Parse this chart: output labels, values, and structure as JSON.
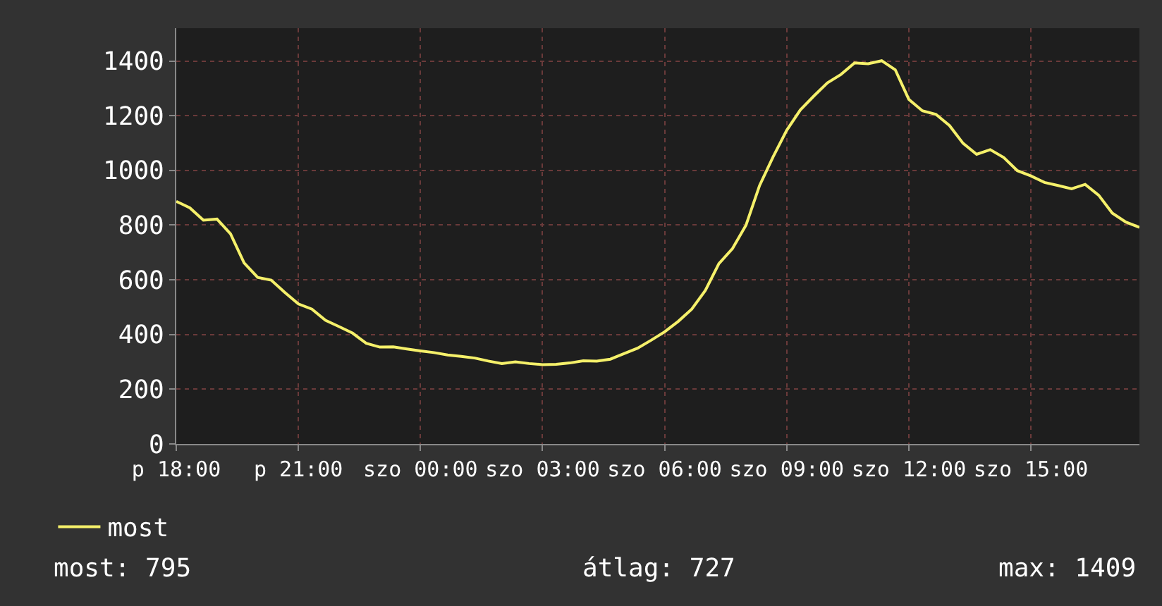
{
  "chart_data": {
    "type": "line",
    "categories": [
      "p 18:00",
      null,
      null,
      null,
      null,
      null,
      null,
      null,
      null,
      "p 21:00",
      null,
      null,
      null,
      null,
      null,
      null,
      null,
      null,
      "szo 00:00",
      null,
      null,
      null,
      null,
      null,
      null,
      null,
      null,
      "szo 03:00",
      null,
      null,
      null,
      null,
      null,
      null,
      null,
      null,
      "szo 06:00",
      null,
      null,
      null,
      null,
      null,
      null,
      null,
      null,
      "szo 09:00",
      null,
      null,
      null,
      null,
      null,
      null,
      null,
      null,
      "szo 12:00",
      null,
      null,
      null,
      null,
      null,
      null,
      null,
      null,
      "szo 15:00",
      null,
      null,
      null,
      null,
      null,
      null,
      null,
      null
    ],
    "series": [
      {
        "name": "most",
        "color": "#f5f06a",
        "values": [
          887,
          863,
          818,
          822,
          768,
          662,
          609,
          599,
          554,
          512,
          493,
          452,
          429,
          405,
          368,
          354,
          355,
          347,
          340,
          334,
          325,
          320,
          314,
          303,
          294,
          300,
          294,
          290,
          291,
          296,
          304,
          303,
          310,
          330,
          350,
          379,
          410,
          448,
          493,
          561,
          659,
          714,
          800,
          945,
          1050,
          1147,
          1221,
          1272,
          1320,
          1351,
          1393,
          1390,
          1401,
          1368,
          1260,
          1218,
          1205,
          1164,
          1099,
          1059,
          1076,
          1047,
          999,
          980,
          956,
          945,
          933,
          949,
          909,
          844,
          811,
          792
        ]
      }
    ],
    "ylim": [
      0,
      1520
    ],
    "yticks": [
      0,
      200,
      400,
      600,
      800,
      1000,
      1200,
      1400
    ],
    "grid": true,
    "legend": "bottom left",
    "line_style": "solid",
    "marker": "none",
    "annotations": [
      "most: 795",
      "átlag: 727",
      "max: 1409"
    ]
  }
}
